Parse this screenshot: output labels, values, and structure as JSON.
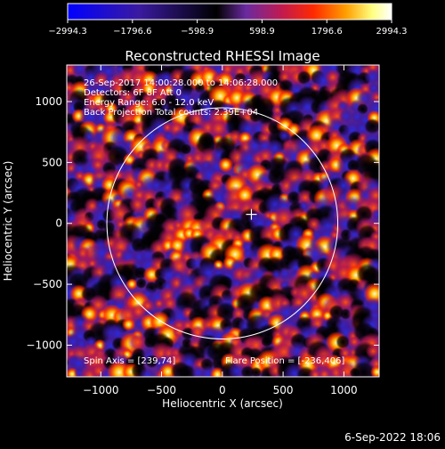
{
  "colorbar": {
    "tick_labels": [
      "−2994.3",
      "−1796.6",
      "−598.9",
      "598.9",
      "1796.6",
      "2994.3"
    ],
    "tick_values": [
      -2994.3,
      -1796.6,
      -598.9,
      598.9,
      1796.6,
      2994.3
    ],
    "range": [
      -2994.3,
      2994.3
    ],
    "colors": [
      "#0000ff",
      "#3a1aa0",
      "#000000",
      "#6a2aa0",
      "#c01a50",
      "#ff2a00",
      "#ffa000",
      "#ffff80",
      "#ffffff"
    ]
  },
  "image": {
    "title": "Reconstructed RHESSI Image",
    "info_line1": "26-Sep-2017 14:00:28.000 to 14:06:28.000",
    "info_line2": "Detectors: 6F 8F  Att 0",
    "info_line3": "Energy Range: 6.0 - 12.0 keV",
    "info_line4": "Back Projection    Total counts: 2.39E+04",
    "spin_axis": "Spin Axis = [239,74]",
    "flare_position": "Flare Position = [-236,406]",
    "xlabel": "Heliocentric X (arcsec)",
    "ylabel": "Heliocentric Y (arcsec)",
    "x_ticks": [
      "−1000",
      "−500",
      "0",
      "500",
      "1000"
    ],
    "y_ticks": [
      "1000",
      "500",
      "0",
      "−500",
      "−1000"
    ],
    "x_tick_values": [
      -1000,
      -500,
      0,
      500,
      1000
    ],
    "y_tick_values": [
      1000,
      500,
      0,
      -500,
      -1000
    ],
    "xlim": [
      -1280,
      1290
    ],
    "ylim": [
      -1260,
      1300
    ],
    "solar_limb_radius_arcsec": 950,
    "crosshair_position": [
      239,
      74
    ]
  },
  "footer": {
    "timestamp": "6-Sep-2022 18:06"
  }
}
